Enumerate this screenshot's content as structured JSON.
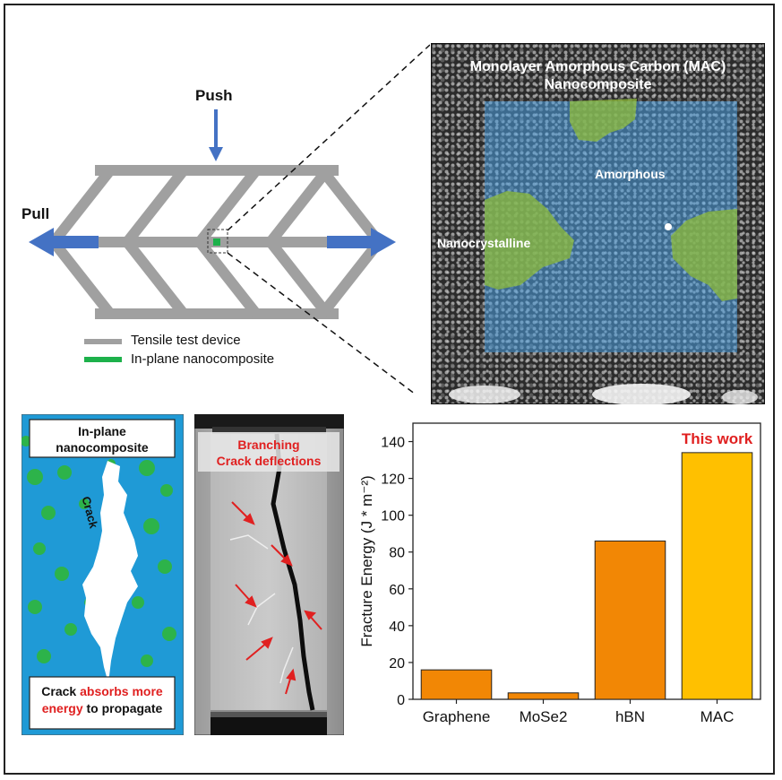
{
  "device": {
    "push_label": "Push",
    "pull_label": "Pull",
    "legend": [
      {
        "label": "Tensile test device",
        "color": "#a0a0a0"
      },
      {
        "label": "In-plane nanocomposite",
        "color": "#1db14b"
      }
    ],
    "frame_color": "#a0a0a0",
    "arrow_color": "#4472c4"
  },
  "micrograph": {
    "title_line1": "Monolayer Amorphous Carbon (MAC)",
    "title_line2": "Nanocomposite",
    "amorphous_label": "Amorphous",
    "nanocrystalline_label": "Nanocrystalline",
    "amorphous_color": "#4a9fe0",
    "nanocrystalline_color": "#8dbb3a"
  },
  "simulation": {
    "title_line1": "In-plane",
    "title_line2": "nanocomposite",
    "crack_label": "Crack",
    "caption_part1": "Crack ",
    "caption_part2": "absorbs more",
    "caption_part3": "energy",
    "caption_part4": " to propagate",
    "matrix_color": "#1f9ad6",
    "grain_color": "#2db34a",
    "highlight_color": "#e02020"
  },
  "sem": {
    "title_line1": "Branching",
    "title_line2": "Crack deflections",
    "title_color": "#e02020"
  },
  "chart_data": {
    "type": "bar",
    "categories": [
      "Graphene",
      "MoSe2",
      "hBN",
      "MAC"
    ],
    "values": [
      16,
      3.5,
      86,
      134
    ],
    "ylabel": "Fracture Energy (J * m⁻²)",
    "xlabel": "",
    "ylim": [
      0,
      150
    ],
    "yticks": [
      0,
      20,
      40,
      60,
      80,
      100,
      120,
      140
    ],
    "bar_colors": [
      "#f28705",
      "#f28705",
      "#f28705",
      "#ffc000"
    ],
    "annotation": "This work",
    "annotation_color": "#e02020",
    "grid": false
  }
}
